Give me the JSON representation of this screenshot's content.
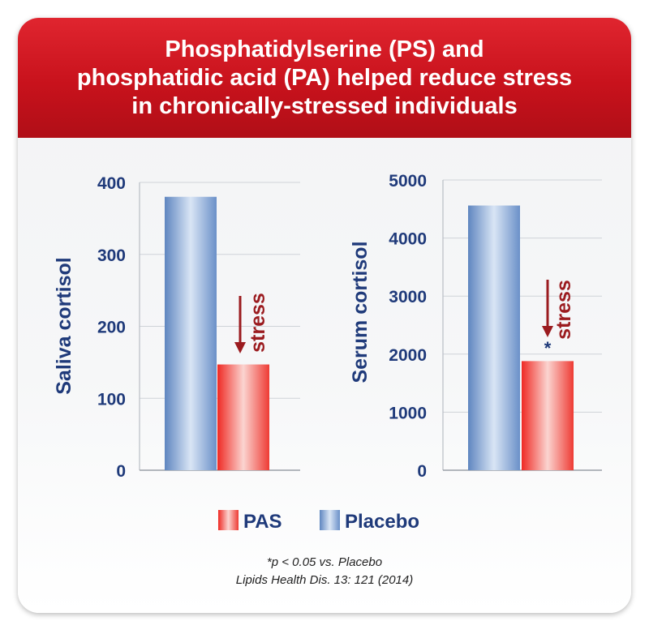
{
  "title_lines": [
    "Phosphatidylserine (PS) and",
    "phosphatidic acid (PA) helped reduce stress",
    "in chronically-stressed individuals"
  ],
  "chart_data": [
    {
      "type": "bar",
      "ylabel": "Saliva cortisol",
      "ylim": [
        0,
        400
      ],
      "yticks": [
        0,
        100,
        200,
        300,
        400
      ],
      "grid": true,
      "series": [
        {
          "name": "Placebo",
          "values": [
            380
          ]
        },
        {
          "name": "PAS",
          "values": [
            147
          ]
        }
      ],
      "annotation": {
        "text": "stress",
        "significance": ""
      }
    },
    {
      "type": "bar",
      "ylabel": "Serum cortisol",
      "ylim": [
        0,
        5000
      ],
      "yticks": [
        0,
        1000,
        2000,
        3000,
        4000,
        5000
      ],
      "grid": true,
      "series": [
        {
          "name": "Placebo",
          "values": [
            4560
          ]
        },
        {
          "name": "PAS",
          "values": [
            1880
          ]
        }
      ],
      "annotation": {
        "text": "stress",
        "significance": "*"
      }
    }
  ],
  "legend": [
    {
      "label": "PAS",
      "color": "#e8403a"
    },
    {
      "label": "Placebo",
      "color": "#6f96cc"
    }
  ],
  "colors": {
    "axis_text": "#1f3a7a",
    "arrow": "#9b1b1f",
    "banner": "#c8121c"
  },
  "footnote": {
    "line1": "*p < 0.05 vs. Placebo",
    "line2": "Lipids Health Dis. 13: 121 (2014)"
  }
}
